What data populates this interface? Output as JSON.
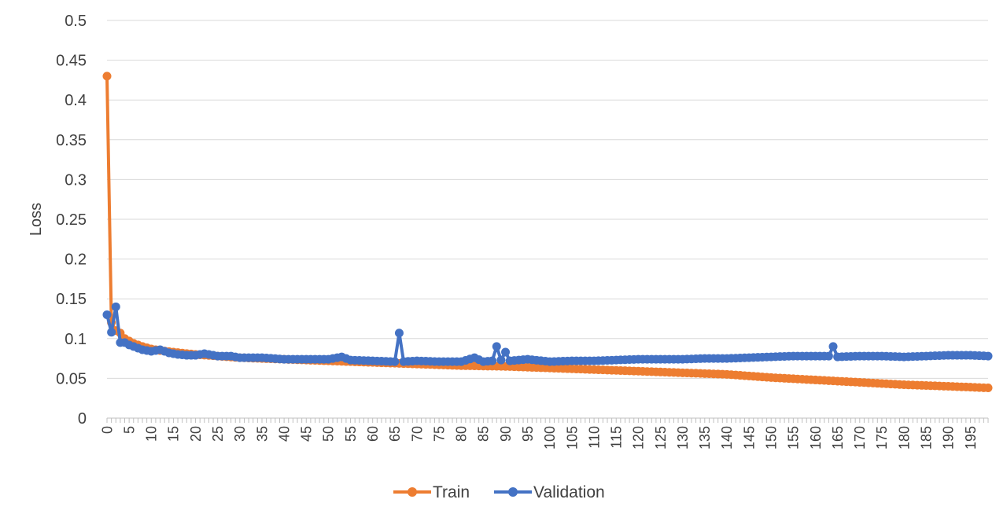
{
  "chart_data": {
    "type": "line",
    "title": "",
    "xlabel": "",
    "ylabel": "Loss",
    "ylim": [
      0,
      0.5
    ],
    "yticks": [
      0,
      0.05,
      0.1,
      0.15,
      0.2,
      0.25,
      0.3,
      0.35,
      0.4,
      0.45,
      0.5
    ],
    "ytick_labels": [
      "0",
      "0.05",
      "0.1",
      "0.15",
      "0.2",
      "0.25",
      "0.3",
      "0.35",
      "0.4",
      "0.45",
      "0.5"
    ],
    "xlim": [
      0,
      199
    ],
    "xticks": [
      0,
      5,
      10,
      15,
      20,
      25,
      30,
      35,
      40,
      45,
      50,
      55,
      60,
      65,
      70,
      75,
      80,
      85,
      90,
      95,
      100,
      105,
      110,
      115,
      120,
      125,
      130,
      135,
      140,
      145,
      150,
      155,
      160,
      165,
      170,
      175,
      180,
      185,
      190,
      195
    ],
    "grid": true,
    "legend": "bottom",
    "series": [
      {
        "name": "Train",
        "color": "#ED7D31",
        "x": [
          0,
          1,
          2,
          3,
          4,
          5,
          6,
          8,
          10,
          12,
          15,
          20,
          25,
          30,
          40,
          50,
          60,
          70,
          80,
          90,
          100,
          110,
          120,
          130,
          140,
          150,
          160,
          170,
          180,
          190,
          199
        ],
        "values": [
          0.43,
          0.12,
          0.11,
          0.107,
          0.1,
          0.097,
          0.094,
          0.09,
          0.087,
          0.085,
          0.083,
          0.08,
          0.078,
          0.076,
          0.074,
          0.072,
          0.07,
          0.068,
          0.066,
          0.065,
          0.063,
          0.061,
          0.059,
          0.057,
          0.055,
          0.051,
          0.048,
          0.045,
          0.042,
          0.04,
          0.038
        ]
      },
      {
        "name": "Validation",
        "color": "#4472C4",
        "x": [
          0,
          1,
          2,
          3,
          4,
          5,
          6,
          8,
          10,
          12,
          14,
          16,
          18,
          20,
          22,
          25,
          28,
          30,
          35,
          40,
          45,
          50,
          53,
          55,
          60,
          65,
          66,
          67,
          70,
          75,
          80,
          83,
          85,
          87,
          88,
          89,
          90,
          91,
          95,
          100,
          105,
          110,
          115,
          120,
          125,
          130,
          135,
          140,
          145,
          150,
          155,
          160,
          163,
          164,
          165,
          170,
          175,
          180,
          185,
          190,
          195,
          199
        ],
        "values": [
          0.13,
          0.108,
          0.14,
          0.095,
          0.095,
          0.092,
          0.09,
          0.086,
          0.084,
          0.086,
          0.082,
          0.08,
          0.079,
          0.079,
          0.081,
          0.078,
          0.078,
          0.076,
          0.076,
          0.074,
          0.074,
          0.074,
          0.077,
          0.073,
          0.072,
          0.071,
          0.107,
          0.071,
          0.072,
          0.071,
          0.071,
          0.076,
          0.071,
          0.072,
          0.09,
          0.073,
          0.083,
          0.072,
          0.074,
          0.071,
          0.072,
          0.072,
          0.073,
          0.074,
          0.074,
          0.074,
          0.075,
          0.075,
          0.076,
          0.077,
          0.078,
          0.078,
          0.078,
          0.09,
          0.077,
          0.078,
          0.078,
          0.077,
          0.078,
          0.079,
          0.079,
          0.078
        ]
      }
    ]
  }
}
